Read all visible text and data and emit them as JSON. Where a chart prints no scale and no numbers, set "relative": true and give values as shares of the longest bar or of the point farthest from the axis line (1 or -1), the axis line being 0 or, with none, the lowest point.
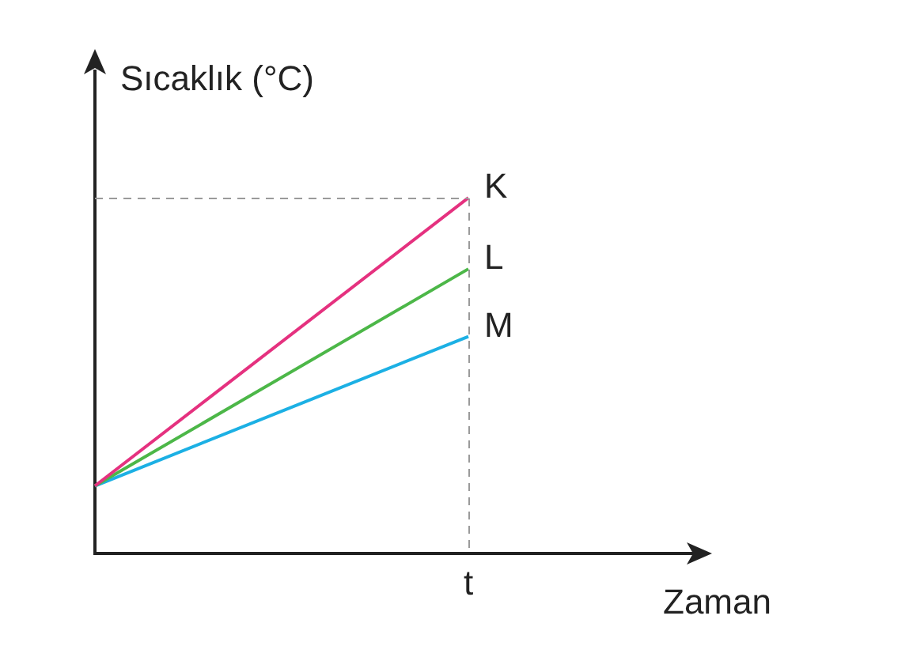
{
  "chart_data": {
    "type": "line",
    "relative": true,
    "xlabel": "Zaman",
    "ylabel": "Sıcaklık (°C)",
    "categories": [
      null,
      null
    ],
    "annotations": [
      "t"
    ],
    "series": [
      {
        "name": "K",
        "color": "#e5317f",
        "values": [
          0.19,
          1
        ]
      },
      {
        "name": "L",
        "color": "#4cb748",
        "values": [
          0.19,
          0.8
        ]
      },
      {
        "name": "M",
        "color": "#1cb0e4",
        "values": [
          0.19,
          0.61
        ]
      }
    ],
    "legend": false,
    "grid": false,
    "marker": "none",
    "line_style": "solid"
  }
}
